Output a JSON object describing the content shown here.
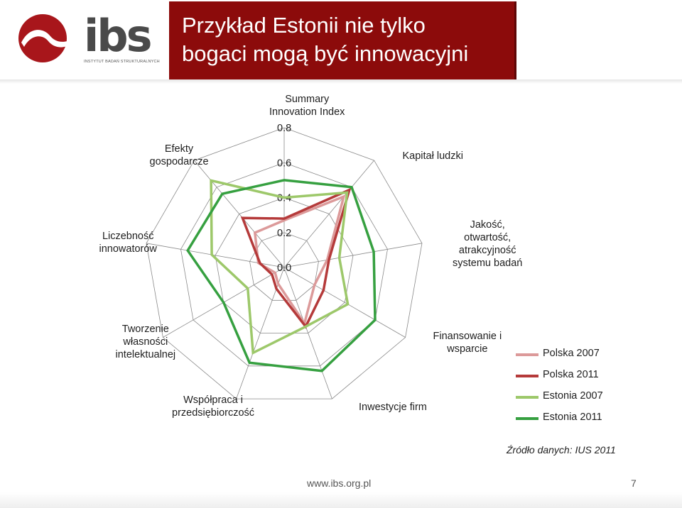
{
  "slide": {
    "title_line1": "Przykład Estonii  nie tylko",
    "title_line2": "bogaci mogą być innowacyjni",
    "logo_text": "ibs",
    "logo_subtitle": "INSTYTUT BADAŃ STRUKTURALNYCH",
    "source": "Źródło danych: IUS 2011",
    "footer_url": "www.ibs.org.pl",
    "page_number": "7"
  },
  "colors": {
    "title_bg": "#8c0b0b",
    "logo_red": "#a8161b",
    "polska_2007": "#dc9a9a",
    "polska_2011": "#b53a3a",
    "estonia_2007": "#9dc86a",
    "estonia_2011": "#36a040"
  },
  "chart_data": {
    "type": "radar",
    "axes": [
      "Summary Innovation Index",
      "Kapitał ludzki",
      "Jakość, otwartość, atrakcyjność systemu badań",
      "Finansowanie i wsparcie",
      "Inwestycje firm",
      "Współpraca i przedsiębiorczość",
      "Tworzenie własności intelektualnej",
      "Liczebność innowatorów",
      "Efekty gospodarcze"
    ],
    "axis_labels": [
      [
        "Summary",
        "Innovation Index"
      ],
      [
        "Kapitał ludzki"
      ],
      [
        "Jakość,",
        "otwartość,",
        "atrakcyjność",
        "systemu badań"
      ],
      [
        "Finansowanie i",
        "wsparcie"
      ],
      [
        "Inwestycje firm"
      ],
      [
        "Współpraca i",
        "przedsiębiorczość"
      ],
      [
        "Tworzenie",
        "własności",
        "intelektualnej"
      ],
      [
        "Liczebność",
        "innowatorów"
      ],
      [
        "Efekty",
        "gospodarcze"
      ]
    ],
    "r_range": [
      0,
      0.8
    ],
    "r_ticks": [
      "0.0",
      "0.2",
      "0.4",
      "0.6",
      "0.8"
    ],
    "grid": true,
    "legend_position": "right",
    "series": [
      {
        "name": "Polska 2007",
        "color": "#dc9a9a",
        "values": [
          0.27,
          0.53,
          0.25,
          0.2,
          0.34,
          0.1,
          0.06,
          0.15,
          0.26
        ]
      },
      {
        "name": "Polska 2011",
        "color": "#b53a3a",
        "values": [
          0.28,
          0.58,
          0.26,
          0.26,
          0.36,
          0.13,
          0.08,
          0.14,
          0.37
        ]
      },
      {
        "name": "Estonia 2007",
        "color": "#9dc86a",
        "values": [
          0.4,
          0.56,
          0.32,
          0.42,
          0.36,
          0.52,
          0.24,
          0.42,
          0.65
        ]
      },
      {
        "name": "Estonia 2011",
        "color": "#36a040",
        "values": [
          0.5,
          0.6,
          0.52,
          0.6,
          0.63,
          0.58,
          0.4,
          0.56,
          0.55
        ]
      }
    ]
  }
}
